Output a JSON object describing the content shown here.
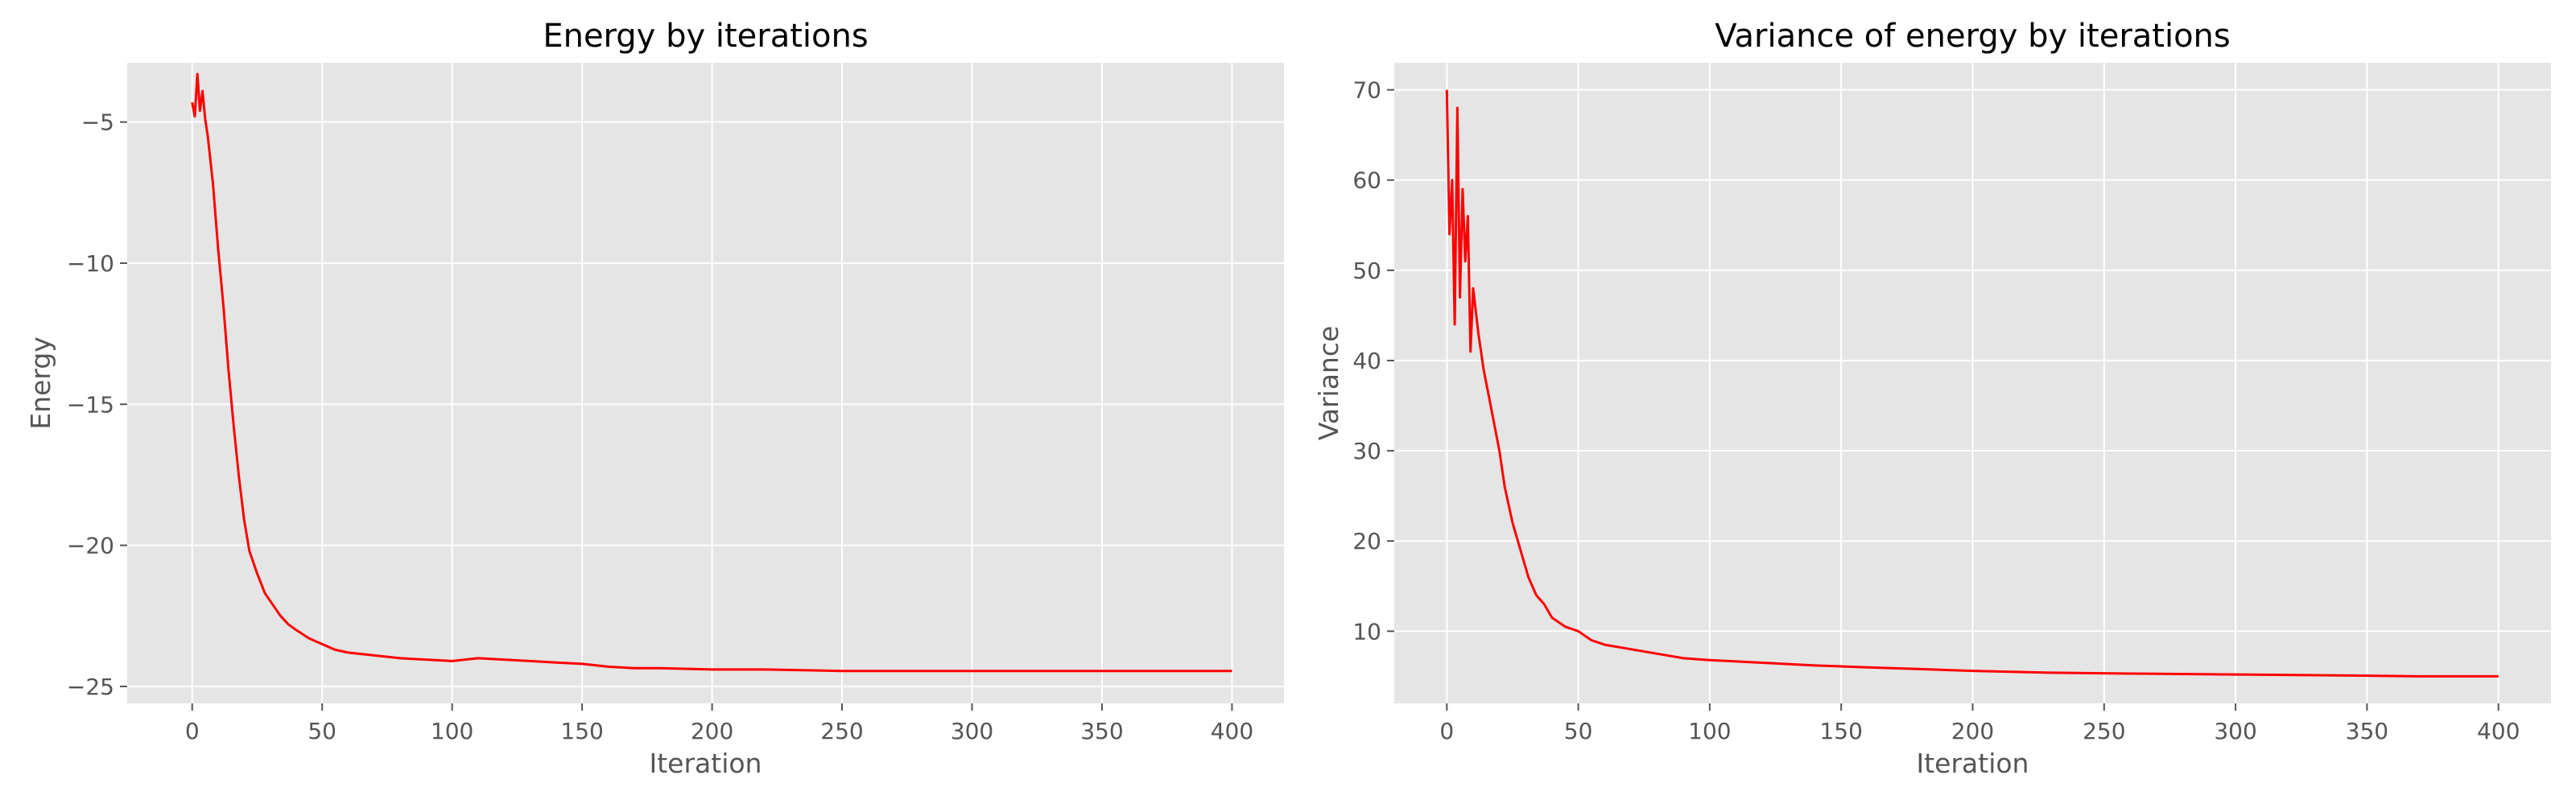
{
  "chart_data": [
    {
      "type": "line",
      "title": "Energy by iterations",
      "xlabel": "Iteration",
      "ylabel": "Energy",
      "xlim": [
        -25,
        420
      ],
      "ylim": [
        -25.6,
        -2.9
      ],
      "xticks": [
        0,
        50,
        100,
        150,
        200,
        250,
        300,
        350,
        400
      ],
      "yticks": [
        -25,
        -20,
        -15,
        -10,
        -5
      ],
      "xtick_labels": [
        "0",
        "50",
        "100",
        "150",
        "200",
        "250",
        "300",
        "350",
        "400"
      ],
      "ytick_labels": [
        "−25",
        "−20",
        "−15",
        "−10",
        "−5"
      ],
      "grid": true,
      "series": [
        {
          "color": "#ff0000",
          "x": [
            0,
            1,
            2,
            3,
            4,
            5,
            6,
            8,
            10,
            12,
            14,
            16,
            18,
            20,
            22,
            25,
            28,
            31,
            34,
            37,
            40,
            45,
            50,
            55,
            60,
            70,
            80,
            90,
            100,
            110,
            120,
            130,
            140,
            150,
            160,
            170,
            180,
            200,
            220,
            250,
            280,
            300,
            330,
            360,
            380,
            400
          ],
          "y": [
            -4.3,
            -4.8,
            -3.3,
            -4.6,
            -3.9,
            -4.9,
            -5.5,
            -7.2,
            -9.5,
            -11.5,
            -13.8,
            -15.8,
            -17.6,
            -19.1,
            -20.2,
            -21.0,
            -21.7,
            -22.1,
            -22.5,
            -22.8,
            -23.0,
            -23.3,
            -23.5,
            -23.7,
            -23.8,
            -23.9,
            -24.0,
            -24.05,
            -24.1,
            -24.0,
            -24.05,
            -24.1,
            -24.15,
            -24.2,
            -24.3,
            -24.35,
            -24.35,
            -24.4,
            -24.4,
            -24.45,
            -24.45,
            -24.45,
            -24.45,
            -24.45,
            -24.45,
            -24.45
          ]
        }
      ]
    },
    {
      "type": "line",
      "title": "Variance of energy by iterations",
      "xlabel": "Iteration",
      "ylabel": "Variance",
      "xlim": [
        -20,
        420
      ],
      "ylim": [
        2,
        73
      ],
      "xticks": [
        0,
        50,
        100,
        150,
        200,
        250,
        300,
        350,
        400
      ],
      "yticks": [
        10,
        20,
        30,
        40,
        50,
        60,
        70
      ],
      "xtick_labels": [
        "0",
        "50",
        "100",
        "150",
        "200",
        "250",
        "300",
        "350",
        "400"
      ],
      "ytick_labels": [
        "10",
        "20",
        "30",
        "40",
        "50",
        "60",
        "70"
      ],
      "grid": true,
      "series": [
        {
          "color": "#ff0000",
          "x": [
            0,
            1,
            2,
            3,
            4,
            5,
            6,
            7,
            8,
            9,
            10,
            12,
            14,
            16,
            18,
            20,
            22,
            25,
            28,
            31,
            34,
            37,
            40,
            45,
            50,
            55,
            60,
            70,
            80,
            90,
            100,
            120,
            140,
            160,
            180,
            200,
            230,
            260,
            300,
            340,
            370,
            400
          ],
          "y": [
            70,
            54,
            60,
            44,
            68,
            47,
            59,
            51,
            56,
            41,
            48,
            43,
            39,
            36,
            33,
            30,
            26,
            22,
            19,
            16,
            14,
            13,
            11.5,
            10.5,
            10,
            9,
            8.5,
            8,
            7.5,
            7,
            6.8,
            6.5,
            6.2,
            6,
            5.8,
            5.6,
            5.4,
            5.3,
            5.2,
            5.1,
            5.0,
            5.0
          ]
        }
      ]
    }
  ]
}
